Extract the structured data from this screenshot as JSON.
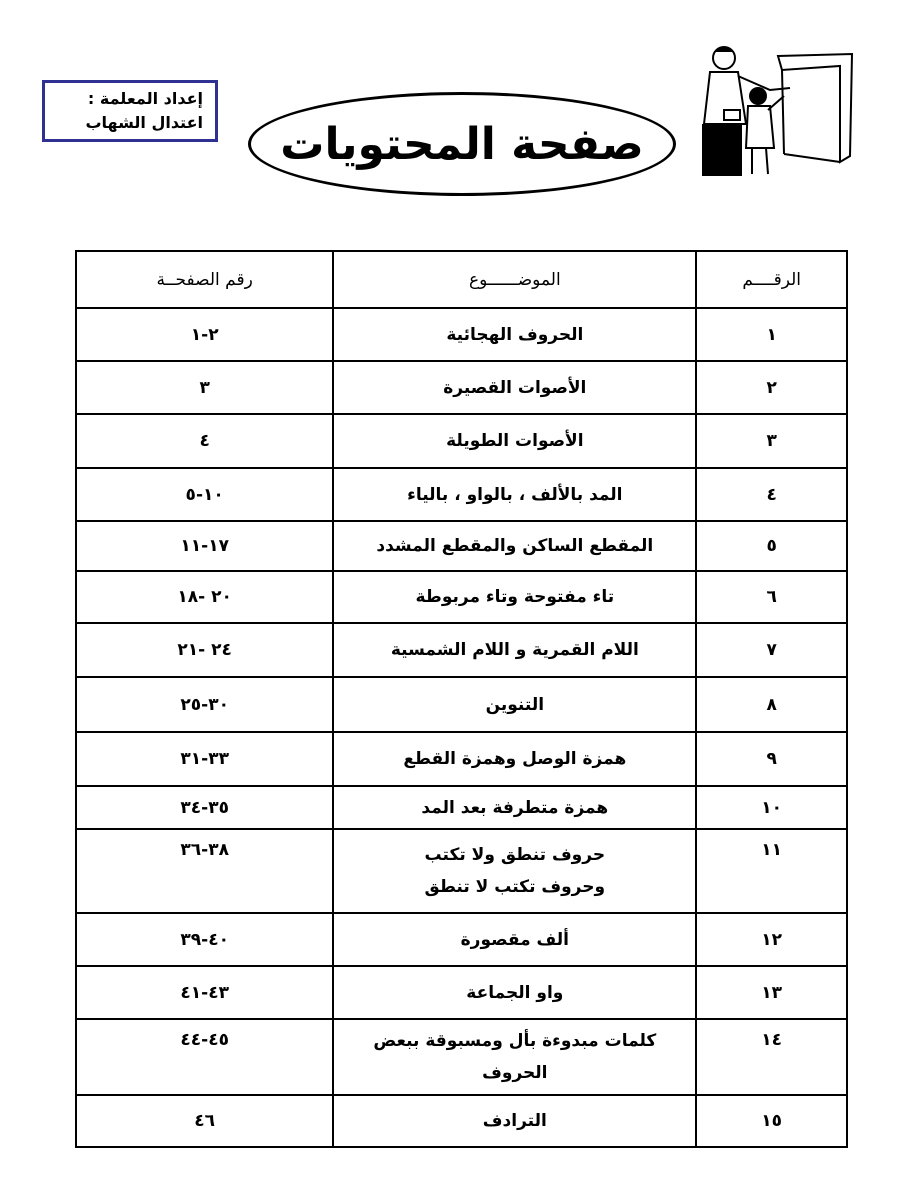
{
  "author_box": {
    "line1": "إعداد المعلمة :",
    "line2": "اعتدال الشهاب",
    "border_color": "#2e3192"
  },
  "title": "صفحة المحتويات",
  "illustration": "teacher-and-student-at-board",
  "table": {
    "headers": {
      "number": "الرقــــم",
      "topic": "الموضــــــوع",
      "page": "رقم الصفحــة"
    },
    "rows": [
      {
        "number": "١",
        "topic": "الحروف الهجائية",
        "page": "٢-١"
      },
      {
        "number": "٢",
        "topic": "الأصوات القصيرة",
        "page": "٣"
      },
      {
        "number": "٣",
        "topic": "الأصوات الطويلة",
        "page": "٤"
      },
      {
        "number": "٤",
        "topic": "المد بالألف ، بالواو ، بالياء",
        "page": "١٠-٥"
      },
      {
        "number": "٥",
        "topic": "المقطع الساكن والمقطع المشدد",
        "page": "١٧-١١"
      },
      {
        "number": "٦",
        "topic": "تاء مفتوحة وتاء مربوطة",
        "page": "٢٠ -١٨"
      },
      {
        "number": "٧",
        "topic": "اللام القمرية و اللام الشمسية",
        "page": "٢٤ -٢١"
      },
      {
        "number": "٨",
        "topic": "التنوين",
        "page": "٣٠-٢٥"
      },
      {
        "number": "٩",
        "topic": "همزة الوصل وهمزة القطع",
        "page": "٣٣-٣١"
      },
      {
        "number": "١٠",
        "topic": "همزة متطرفة بعد المد",
        "page": "٣٥-٣٤"
      },
      {
        "number": "١١",
        "topic": "حروف تنطق ولا تكتب",
        "topic2": "وحروف تكتب لا تنطق",
        "page": "٣٨-٣٦"
      },
      {
        "number": "١٢",
        "topic": "ألف مقصورة",
        "page": "٤٠-٣٩"
      },
      {
        "number": "١٣",
        "topic": "واو الجماعة",
        "page": "٤٣-٤١"
      },
      {
        "number": "١٤",
        "topic": "كلمات مبدوءة بأل ومسبوقة ببعض",
        "topic2": "الحروف",
        "page": "٤٥-٤٤"
      },
      {
        "number": "١٥",
        "topic": "الترادف",
        "page": "٤٦"
      }
    ]
  }
}
